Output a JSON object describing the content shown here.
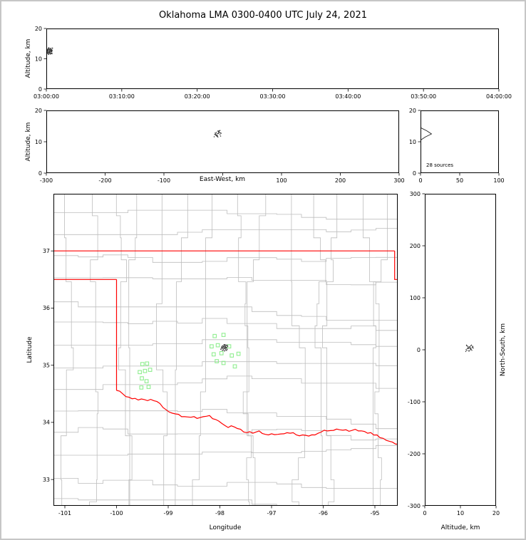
{
  "title": "Oklahoma LMA 0300-0400 UTC July 24, 2021",
  "labels": {
    "alt_axis_1": "Altitude, km",
    "alt_axis_2": "Altitude, km",
    "ew_axis": "East-West, km",
    "latitude": "Latitude",
    "longitude": "Longitude",
    "ns_axis": "North-South, km",
    "alt_axis_bottom": "Altitude, km",
    "source_count": "28 sources"
  },
  "colors": {
    "state_border": "#ff0000",
    "county_line": "#bdbdbd",
    "station": "#90ee90",
    "source": "#2a2a2a",
    "axis": "#000000",
    "frame": "#c6c6c6"
  },
  "chart_data": {
    "type": "scatter",
    "title": "Oklahoma LMA 0300-0400 UTC July 24, 2021",
    "panels": [
      {
        "id": "time_height",
        "x_ticks": [
          "03:00:00",
          "03:10:00",
          "03:20:00",
          "03:30:00",
          "03:40:00",
          "03:50:00",
          "04:00:00"
        ],
        "x_range_seconds": [
          0,
          3600
        ],
        "ylabel": "Altitude, km",
        "y_ticks": [
          0,
          10,
          20
        ],
        "ylim": [
          0,
          20
        ]
      },
      {
        "id": "ew_height",
        "xlabel": "East-West, km",
        "x_ticks": [
          -300,
          -200,
          -100,
          0,
          100,
          200,
          300
        ],
        "x_tick_labels": [
          "-300",
          "-200",
          "-100",
          "",
          "100",
          "200",
          "300"
        ],
        "xlim": [
          -300,
          300
        ],
        "ylabel": "Altitude, km",
        "y_ticks": [
          0,
          10,
          20
        ],
        "ylim": [
          0,
          20
        ]
      },
      {
        "id": "alt_histogram",
        "annotation": "28 sources",
        "x_ticks": [
          0,
          50,
          100
        ],
        "xlim": [
          0,
          100
        ],
        "y_ticks": [
          0,
          10,
          20
        ],
        "ylim": [
          0,
          20
        ]
      },
      {
        "id": "plan_view",
        "xlabel": "Longitude",
        "x_ticks": [
          -101,
          -100,
          -99,
          -98,
          -97,
          -96,
          -95
        ],
        "xlim": [
          -101.2207,
          -94.5586
        ],
        "ylabel": "Latitude",
        "y_ticks": [
          33,
          34,
          35,
          36,
          37
        ],
        "ylim": [
          32.54,
          38.0
        ]
      },
      {
        "id": "ns_height",
        "xlabel": "Altitude, km",
        "x_ticks": [
          0,
          10,
          20
        ],
        "xlim": [
          0,
          20
        ],
        "ylabel": "North-South, km",
        "y_ticks": [
          300,
          200,
          100,
          0,
          -100,
          -200,
          -300
        ],
        "ylim": [
          -300,
          300
        ]
      }
    ],
    "network_center": {
      "lon": -97.82,
      "lat": 35.28,
      "km_per_deg_lon": 91.0,
      "km_per_deg_lat": 111.0
    },
    "stations": [
      [
        -99.5,
        35.02
      ],
      [
        -99.41,
        35.03
      ],
      [
        -99.55,
        34.88
      ],
      [
        -99.45,
        34.9
      ],
      [
        -99.35,
        34.92
      ],
      [
        -99.51,
        34.77
      ],
      [
        -99.42,
        34.72
      ],
      [
        -99.52,
        34.61
      ],
      [
        -99.38,
        34.62
      ],
      [
        -98.1,
        35.51
      ],
      [
        -97.93,
        35.53
      ],
      [
        -98.16,
        35.33
      ],
      [
        -98.04,
        35.35
      ],
      [
        -97.82,
        35.33
      ],
      [
        -98.12,
        35.19
      ],
      [
        -97.97,
        35.21
      ],
      [
        -97.77,
        35.17
      ],
      [
        -97.64,
        35.2
      ],
      [
        -98.06,
        35.07
      ],
      [
        -97.93,
        35.04
      ],
      [
        -97.71,
        34.98
      ]
    ],
    "sources": {
      "columns": [
        "t_seconds_after_0300",
        "alt_km",
        "lon",
        "lat"
      ],
      "rows": [
        [
          4,
          12.1,
          -97.95,
          35.31
        ],
        [
          6,
          12.6,
          -97.92,
          35.33
        ],
        [
          7,
          13.0,
          -97.9,
          35.29
        ],
        [
          9,
          12.9,
          -97.88,
          35.35
        ],
        [
          11,
          11.8,
          -97.93,
          35.27
        ],
        [
          12,
          12.3,
          -97.97,
          35.3
        ],
        [
          14,
          13.3,
          -97.89,
          35.32
        ],
        [
          15,
          12.8,
          -97.86,
          35.28
        ],
        [
          17,
          11.5,
          -97.91,
          35.25
        ],
        [
          18,
          12.0,
          -97.94,
          35.34
        ],
        [
          20,
          13.6,
          -97.87,
          35.31
        ],
        [
          21,
          13.1,
          -97.9,
          35.36
        ],
        [
          23,
          12.4,
          -97.96,
          35.33
        ],
        [
          25,
          11.9,
          -97.92,
          35.3
        ],
        [
          26,
          12.7,
          -97.85,
          35.33
        ],
        [
          28,
          13.2,
          -97.89,
          35.27
        ],
        [
          30,
          12.2,
          -97.93,
          35.32
        ],
        [
          31,
          11.6,
          -97.98,
          35.28
        ],
        [
          33,
          12.9,
          -97.88,
          35.3
        ],
        [
          35,
          13.4,
          -97.91,
          35.34
        ],
        [
          36,
          12.5,
          -97.95,
          35.26
        ],
        [
          38,
          11.8,
          -97.86,
          35.35
        ],
        [
          40,
          12.6,
          -97.9,
          35.31
        ],
        [
          41,
          13.0,
          -97.94,
          35.29
        ],
        [
          43,
          12.3,
          -97.87,
          35.26
        ],
        [
          45,
          11.7,
          -97.92,
          35.36
        ],
        [
          46,
          12.8,
          -97.96,
          35.31
        ],
        [
          48,
          13.5,
          -97.89,
          35.33
        ]
      ]
    },
    "oklahoma_border": {
      "kansas_37N": [
        [
          -101.25,
          37.0
        ],
        [
          -94.618,
          37.0
        ]
      ],
      "missouri_east": [
        [
          -94.618,
          37.0
        ],
        [
          -94.618,
          36.5
        ],
        [
          -94.45,
          36.5
        ]
      ],
      "panhandle_south_36_5": [
        [
          -101.25,
          36.5
        ],
        [
          -100.0,
          36.5
        ]
      ],
      "texas_meridian_100W": [
        [
          -100.0,
          36.5
        ],
        [
          -100.0,
          34.56
        ]
      ],
      "red_river_south": [
        [
          -100.0,
          34.56
        ],
        [
          -99.88,
          34.5
        ],
        [
          -99.76,
          34.44
        ],
        [
          -99.64,
          34.42
        ],
        [
          -99.52,
          34.41
        ],
        [
          -99.4,
          34.38
        ],
        [
          -99.28,
          34.38
        ],
        [
          -99.16,
          34.33
        ],
        [
          -99.04,
          34.22
        ],
        [
          -98.92,
          34.16
        ],
        [
          -98.8,
          34.14
        ],
        [
          -98.68,
          34.1
        ],
        [
          -98.56,
          34.09
        ],
        [
          -98.44,
          34.07
        ],
        [
          -98.32,
          34.1
        ],
        [
          -98.2,
          34.12
        ],
        [
          -98.08,
          34.05
        ],
        [
          -97.96,
          33.98
        ],
        [
          -97.84,
          33.91
        ],
        [
          -97.72,
          33.92
        ],
        [
          -97.6,
          33.88
        ],
        [
          -97.48,
          33.82
        ],
        [
          -97.36,
          33.81
        ],
        [
          -97.24,
          33.85
        ],
        [
          -97.12,
          33.79
        ],
        [
          -97.0,
          33.8
        ],
        [
          -96.88,
          33.79
        ],
        [
          -96.76,
          33.8
        ],
        [
          -96.64,
          33.81
        ],
        [
          -96.52,
          33.78
        ],
        [
          -96.4,
          33.78
        ],
        [
          -96.28,
          33.76
        ],
        [
          -96.16,
          33.78
        ],
        [
          -96.04,
          33.83
        ],
        [
          -95.92,
          33.85
        ],
        [
          -95.8,
          33.86
        ],
        [
          -95.68,
          33.87
        ],
        [
          -95.56,
          33.87
        ],
        [
          -95.44,
          33.86
        ],
        [
          -95.32,
          33.85
        ],
        [
          -95.2,
          33.84
        ],
        [
          -95.08,
          33.82
        ],
        [
          -94.96,
          33.78
        ],
        [
          -94.84,
          33.72
        ],
        [
          -94.72,
          33.67
        ],
        [
          -94.6,
          33.62
        ],
        [
          -94.55,
          33.6
        ]
      ]
    },
    "county_grid_style": {
      "lon_step": 0.48,
      "lat_step": 0.385,
      "jitter": 0.15,
      "seed": 11
    }
  }
}
